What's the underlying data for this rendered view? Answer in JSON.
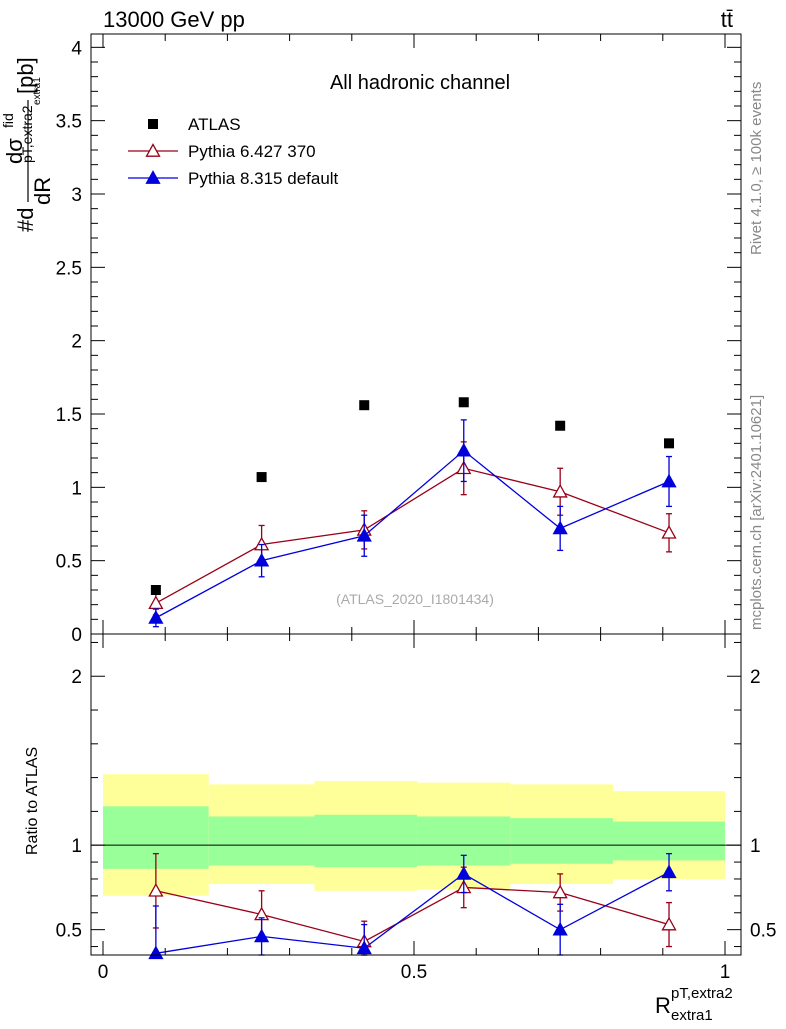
{
  "header": {
    "energy_label": "13000 GeV pp",
    "process_label": "tt̄",
    "side_rivet": "Rivet 4.1.0, ≥ 100k events",
    "side_mcplots": "mcplots.cern.ch [arXiv:2401.10621]",
    "analysis_id": "(ATLAS_2020_I1801434)",
    "channel_title": "All hadronic channel"
  },
  "colors": {
    "atlas": "#000000",
    "pythia6": "#990019",
    "pythia8": "#0000dd",
    "band_stat": "#99ff99",
    "band_total": "#ffff99"
  },
  "chart_data": [
    {
      "type": "scatter",
      "panel": "main",
      "title": "All hadronic channel",
      "ylabel": "#d dσ^fid / dR^{pT,extra2}_{extra1} [pb]",
      "ylabel_parts": {
        "prefix": "#d",
        "num": "dσ",
        "num_sup": "fid",
        "den": "dR",
        "den_sub": "extra1",
        "den_sup": "pT,extra2",
        "unit": "[pb]"
      },
      "xlim": [
        0,
        1
      ],
      "ylim": [
        0,
        4.05
      ],
      "yticks": [
        0.5,
        1,
        1.5,
        2,
        2.5,
        3,
        3.5,
        4
      ],
      "ytick_labels": [
        "0.5",
        "1",
        "1.5",
        "2",
        "2.5",
        "3",
        "3.5",
        "4"
      ],
      "ytick_zero_label": "0",
      "legend": [
        {
          "name": "ATLAS",
          "style": "square"
        },
        {
          "name": "Pythia 6.427 370",
          "style": "open-triangle"
        },
        {
          "name": "Pythia 8.315 default",
          "style": "filled-triangle"
        }
      ],
      "series": [
        {
          "name": "ATLAS",
          "x": [
            0.085,
            0.255,
            0.42,
            0.58,
            0.735,
            0.91
          ],
          "y": [
            0.3,
            1.07,
            1.56,
            1.58,
            1.42,
            1.3
          ]
        },
        {
          "name": "Pythia 6.427 370",
          "x": [
            0.085,
            0.255,
            0.42,
            0.58,
            0.735,
            0.91
          ],
          "y": [
            0.21,
            0.61,
            0.71,
            1.13,
            0.97,
            0.69
          ],
          "err": [
            0.08,
            0.13,
            0.13,
            0.18,
            0.16,
            0.13
          ]
        },
        {
          "name": "Pythia 8.315 default",
          "x": [
            0.085,
            0.255,
            0.42,
            0.58,
            0.735,
            0.91
          ],
          "y": [
            0.11,
            0.5,
            0.67,
            1.25,
            0.72,
            1.04
          ],
          "err": [
            0.06,
            0.11,
            0.14,
            0.21,
            0.15,
            0.17
          ]
        }
      ]
    },
    {
      "type": "scatter",
      "panel": "ratio",
      "ylabel": "Ratio to ATLAS",
      "xlabel": "R^{pT,extra2}_{extra1}",
      "xlabel_parts": {
        "base": "R",
        "sup": "pT,extra2",
        "sub": "extra1"
      },
      "xlim": [
        0,
        1
      ],
      "ylim": [
        0.35,
        2.25
      ],
      "yticks": [
        0.5,
        1,
        2
      ],
      "ytick_labels": [
        "0.5",
        "1",
        "2"
      ],
      "xticks": [
        0,
        0.5,
        1
      ],
      "xtick_labels": [
        "0",
        "0.5",
        "1"
      ],
      "bands": {
        "bin_edges": [
          0,
          0.17,
          0.34,
          0.505,
          0.655,
          0.82,
          1.0
        ],
        "stat_low": [
          0.86,
          0.88,
          0.87,
          0.88,
          0.89,
          0.91
        ],
        "stat_high": [
          1.23,
          1.17,
          1.18,
          1.17,
          1.16,
          1.14
        ],
        "total_low": [
          0.7,
          0.77,
          0.73,
          0.74,
          0.77,
          0.8
        ],
        "total_high": [
          1.42,
          1.36,
          1.38,
          1.37,
          1.36,
          1.32
        ]
      },
      "series": [
        {
          "name": "Pythia 6.427 370",
          "x": [
            0.085,
            0.255,
            0.42,
            0.58,
            0.735,
            0.91
          ],
          "y": [
            0.73,
            0.59,
            0.43,
            0.75,
            0.72,
            0.53
          ],
          "err": [
            0.22,
            0.14,
            0.12,
            0.12,
            0.11,
            0.13
          ]
        },
        {
          "name": "Pythia 8.315 default",
          "x": [
            0.085,
            0.255,
            0.42,
            0.58,
            0.735,
            0.91
          ],
          "y": [
            0.36,
            0.46,
            0.39,
            0.83,
            0.5,
            0.84
          ],
          "err": [
            0.28,
            0.11,
            0.14,
            0.11,
            0.15,
            0.11
          ]
        }
      ]
    }
  ]
}
